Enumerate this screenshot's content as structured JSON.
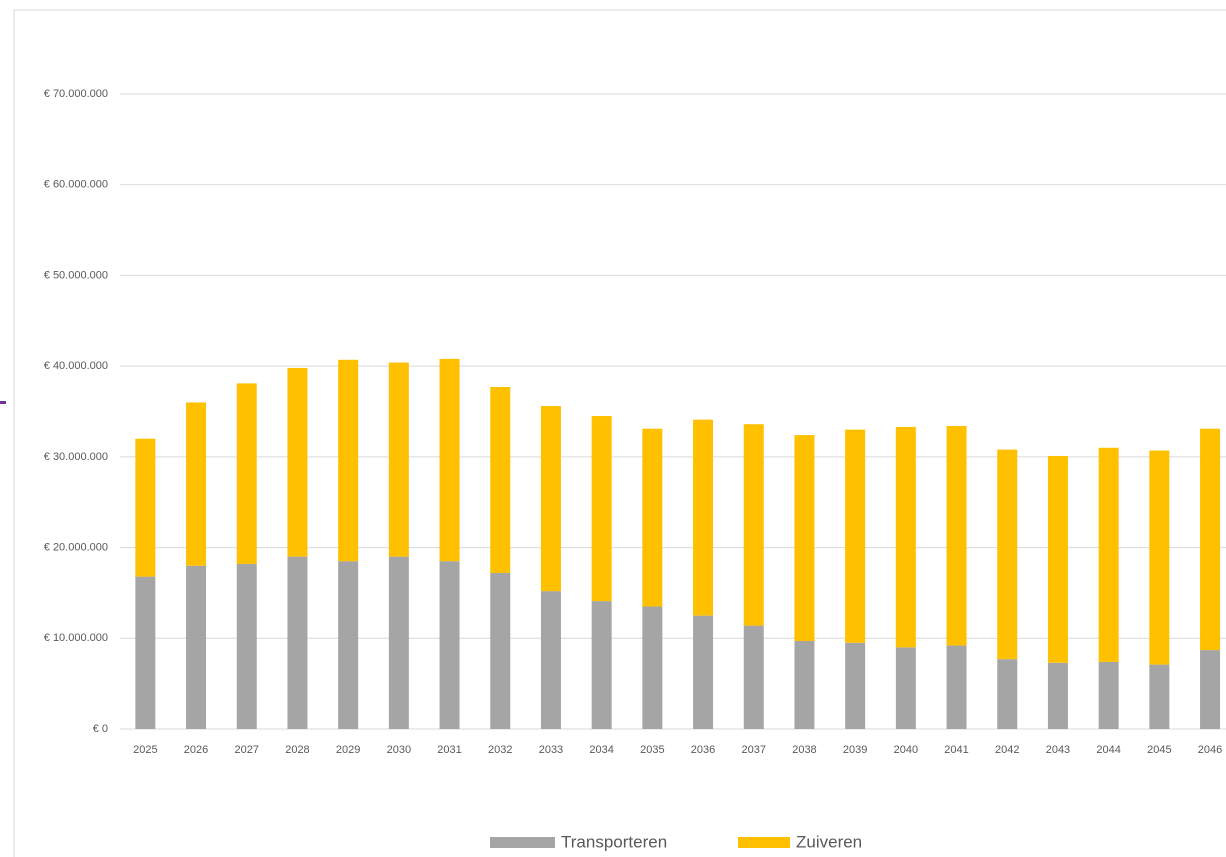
{
  "chart_data": {
    "type": "stacked_bar",
    "categories": [
      "2025",
      "2026",
      "2027",
      "2028",
      "2029",
      "2030",
      "2031",
      "2032",
      "2033",
      "2034",
      "2035",
      "2036",
      "2037",
      "2038",
      "2039",
      "2040",
      "2041",
      "2042",
      "2043",
      "2044",
      "2045",
      "2046"
    ],
    "series": [
      {
        "name": "Transporteren",
        "color": "#a5a5a5",
        "values": [
          16800000,
          18000000,
          18200000,
          19000000,
          18500000,
          19000000,
          18500000,
          17200000,
          15200000,
          14100000,
          13500000,
          12500000,
          11400000,
          9700000,
          9500000,
          9000000,
          9200000,
          7700000,
          7300000,
          7400000,
          7100000,
          8700000
        ]
      },
      {
        "name": "Zuiveren",
        "color": "#ffc000",
        "values": [
          15200000,
          18000000,
          19900000,
          20800000,
          22200000,
          21400000,
          22300000,
          20500000,
          20400000,
          20400000,
          19600000,
          21600000,
          22200000,
          22700000,
          23500000,
          24300000,
          24200000,
          23100000,
          22800000,
          23600000,
          23600000,
          24400000
        ]
      }
    ],
    "ylim": [
      0,
      70000000
    ],
    "yticks": [
      {
        "value": 0,
        "label": "€ 0"
      },
      {
        "value": 10000000,
        "label": "€ 10.000.000"
      },
      {
        "value": 20000000,
        "label": "€ 20.000.000"
      },
      {
        "value": 30000000,
        "label": "€ 30.000.000"
      },
      {
        "value": 40000000,
        "label": "€ 40.000.000"
      },
      {
        "value": 50000000,
        "label": "€ 50.000.000"
      },
      {
        "value": 60000000,
        "label": "€ 60.000.000"
      },
      {
        "value": 70000000,
        "label": "€ 70.000.000"
      }
    ],
    "grid": true,
    "legend": "bottom"
  }
}
